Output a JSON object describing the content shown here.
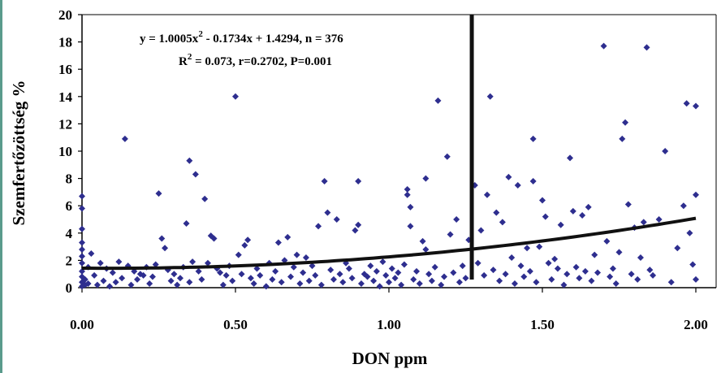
{
  "chart_data": {
    "type": "scatter",
    "xlabel": "DON ppm",
    "ylabel": "Szemfertőzöttség %",
    "xlim": [
      0,
      2.0
    ],
    "ylim": [
      0,
      20
    ],
    "x_ticks": [
      "0.00",
      "0.50",
      "1.00",
      "1.50",
      "2.00"
    ],
    "y_ticks": [
      "0",
      "2",
      "4",
      "6",
      "8",
      "10",
      "12",
      "14",
      "16",
      "18",
      "20"
    ],
    "grid": false,
    "marker_color": "#2e2e8f",
    "annotation": {
      "line1": "y = 1.0005x",
      "line1_sup": "2",
      "line1_rest": " - 0.1734x + 1.4294, n = 376",
      "line2": "R",
      "line2_sup": "2",
      "line2_rest": " = 0.073, r=0.2702, P=0.001"
    },
    "trendline": {
      "a": 1.0005,
      "b": -0.1734,
      "c": 1.4294
    },
    "vertical_line_x": 1.27,
    "points": [
      [
        0.0,
        6.7
      ],
      [
        0.0,
        5.8
      ],
      [
        0.0,
        4.3
      ],
      [
        0.0,
        3.3
      ],
      [
        0.0,
        2.8
      ],
      [
        0.0,
        2.3
      ],
      [
        0.0,
        1.8
      ],
      [
        0.0,
        1.2
      ],
      [
        0.0,
        0.8
      ],
      [
        0.0,
        0.4
      ],
      [
        0.0,
        0.1
      ],
      [
        0.01,
        0.6
      ],
      [
        0.01,
        0.2
      ],
      [
        0.02,
        1.5
      ],
      [
        0.02,
        0.3
      ],
      [
        0.03,
        2.5
      ],
      [
        0.04,
        0.9
      ],
      [
        0.05,
        0.2
      ],
      [
        0.06,
        1.8
      ],
      [
        0.07,
        0.5
      ],
      [
        0.08,
        1.4
      ],
      [
        0.09,
        0.1
      ],
      [
        0.1,
        1.1
      ],
      [
        0.11,
        0.4
      ],
      [
        0.12,
        1.9
      ],
      [
        0.13,
        0.7
      ],
      [
        0.14,
        10.9
      ],
      [
        0.15,
        1.6
      ],
      [
        0.16,
        0.2
      ],
      [
        0.17,
        1.2
      ],
      [
        0.18,
        0.6
      ],
      [
        0.19,
        1.0
      ],
      [
        0.2,
        0.9
      ],
      [
        0.21,
        1.5
      ],
      [
        0.22,
        0.3
      ],
      [
        0.23,
        0.8
      ],
      [
        0.24,
        1.7
      ],
      [
        0.25,
        6.9
      ],
      [
        0.26,
        3.6
      ],
      [
        0.27,
        2.9
      ],
      [
        0.28,
        1.3
      ],
      [
        0.29,
        0.5
      ],
      [
        0.3,
        1.0
      ],
      [
        0.31,
        0.2
      ],
      [
        0.32,
        0.7
      ],
      [
        0.33,
        1.5
      ],
      [
        0.34,
        4.7
      ],
      [
        0.35,
        9.3
      ],
      [
        0.35,
        0.4
      ],
      [
        0.36,
        1.9
      ],
      [
        0.37,
        8.3
      ],
      [
        0.38,
        1.2
      ],
      [
        0.39,
        0.6
      ],
      [
        0.4,
        6.5
      ],
      [
        0.41,
        1.8
      ],
      [
        0.42,
        3.8
      ],
      [
        0.43,
        3.6
      ],
      [
        0.44,
        1.4
      ],
      [
        0.45,
        1.1
      ],
      [
        0.46,
        0.2
      ],
      [
        0.47,
        0.9
      ],
      [
        0.48,
        1.6
      ],
      [
        0.49,
        0.5
      ],
      [
        0.5,
        14.0
      ],
      [
        0.51,
        2.4
      ],
      [
        0.52,
        1.0
      ],
      [
        0.53,
        3.1
      ],
      [
        0.54,
        3.5
      ],
      [
        0.55,
        0.7
      ],
      [
        0.56,
        0.3
      ],
      [
        0.57,
        1.4
      ],
      [
        0.58,
        0.9
      ],
      [
        0.6,
        0.1
      ],
      [
        0.61,
        1.8
      ],
      [
        0.62,
        0.6
      ],
      [
        0.63,
        1.2
      ],
      [
        0.64,
        3.3
      ],
      [
        0.65,
        0.4
      ],
      [
        0.66,
        2.0
      ],
      [
        0.67,
        3.7
      ],
      [
        0.68,
        0.8
      ],
      [
        0.69,
        1.5
      ],
      [
        0.7,
        2.4
      ],
      [
        0.71,
        0.3
      ],
      [
        0.72,
        1.1
      ],
      [
        0.73,
        2.2
      ],
      [
        0.74,
        0.5
      ],
      [
        0.75,
        1.6
      ],
      [
        0.76,
        0.9
      ],
      [
        0.77,
        4.5
      ],
      [
        0.78,
        0.2
      ],
      [
        0.79,
        7.8
      ],
      [
        0.8,
        5.5
      ],
      [
        0.81,
        1.3
      ],
      [
        0.82,
        0.6
      ],
      [
        0.83,
        5.0
      ],
      [
        0.84,
        1.0
      ],
      [
        0.85,
        0.4
      ],
      [
        0.86,
        1.8
      ],
      [
        0.87,
        1.4
      ],
      [
        0.88,
        0.7
      ],
      [
        0.89,
        4.2
      ],
      [
        0.9,
        7.8
      ],
      [
        0.9,
        4.6
      ],
      [
        0.91,
        0.3
      ],
      [
        0.92,
        1.0
      ],
      [
        0.93,
        0.8
      ],
      [
        0.94,
        1.6
      ],
      [
        0.95,
        0.5
      ],
      [
        0.96,
        1.2
      ],
      [
        0.97,
        0.1
      ],
      [
        0.98,
        1.9
      ],
      [
        0.99,
        0.9
      ],
      [
        1.0,
        0.4
      ],
      [
        1.01,
        1.4
      ],
      [
        1.02,
        0.7
      ],
      [
        1.03,
        1.1
      ],
      [
        1.04,
        0.2
      ],
      [
        1.05,
        1.7
      ],
      [
        1.06,
        7.2
      ],
      [
        1.06,
        6.8
      ],
      [
        1.07,
        5.9
      ],
      [
        1.07,
        4.5
      ],
      [
        1.08,
        0.6
      ],
      [
        1.09,
        1.2
      ],
      [
        1.1,
        0.3
      ],
      [
        1.11,
        3.4
      ],
      [
        1.12,
        8.0
      ],
      [
        1.12,
        2.8
      ],
      [
        1.13,
        1.0
      ],
      [
        1.14,
        0.5
      ],
      [
        1.15,
        1.5
      ],
      [
        1.16,
        13.7
      ],
      [
        1.17,
        0.2
      ],
      [
        1.18,
        0.8
      ],
      [
        1.19,
        9.6
      ],
      [
        1.2,
        3.9
      ],
      [
        1.21,
        1.1
      ],
      [
        1.22,
        5.0
      ],
      [
        1.23,
        0.4
      ],
      [
        1.24,
        1.6
      ],
      [
        1.25,
        0.7
      ],
      [
        1.26,
        3.5
      ],
      [
        1.28,
        7.5
      ],
      [
        1.29,
        1.8
      ],
      [
        1.3,
        4.2
      ],
      [
        1.31,
        0.9
      ],
      [
        1.32,
        6.8
      ],
      [
        1.33,
        14.0
      ],
      [
        1.34,
        1.3
      ],
      [
        1.35,
        5.5
      ],
      [
        1.36,
        0.5
      ],
      [
        1.37,
        4.8
      ],
      [
        1.38,
        1.0
      ],
      [
        1.39,
        8.1
      ],
      [
        1.4,
        2.2
      ],
      [
        1.41,
        0.3
      ],
      [
        1.42,
        7.5
      ],
      [
        1.43,
        1.6
      ],
      [
        1.44,
        0.8
      ],
      [
        1.45,
        2.9
      ],
      [
        1.46,
        1.2
      ],
      [
        1.47,
        10.9
      ],
      [
        1.47,
        7.8
      ],
      [
        1.48,
        0.4
      ],
      [
        1.49,
        3.0
      ],
      [
        1.5,
        6.4
      ],
      [
        1.51,
        5.2
      ],
      [
        1.52,
        1.8
      ],
      [
        1.53,
        0.6
      ],
      [
        1.54,
        2.1
      ],
      [
        1.55,
        1.4
      ],
      [
        1.56,
        4.6
      ],
      [
        1.57,
        0.2
      ],
      [
        1.58,
        1.0
      ],
      [
        1.59,
        9.5
      ],
      [
        1.6,
        5.6
      ],
      [
        1.61,
        1.5
      ],
      [
        1.62,
        0.7
      ],
      [
        1.63,
        5.3
      ],
      [
        1.64,
        1.2
      ],
      [
        1.65,
        5.9
      ],
      [
        1.66,
        0.5
      ],
      [
        1.67,
        2.4
      ],
      [
        1.68,
        1.1
      ],
      [
        1.7,
        17.7
      ],
      [
        1.71,
        3.4
      ],
      [
        1.72,
        0.8
      ],
      [
        1.73,
        1.4
      ],
      [
        1.74,
        0.3
      ],
      [
        1.75,
        2.6
      ],
      [
        1.76,
        10.9
      ],
      [
        1.77,
        12.1
      ],
      [
        1.78,
        6.1
      ],
      [
        1.79,
        1.0
      ],
      [
        1.8,
        4.4
      ],
      [
        1.81,
        0.6
      ],
      [
        1.82,
        2.2
      ],
      [
        1.83,
        4.8
      ],
      [
        1.84,
        17.6
      ],
      [
        1.85,
        1.3
      ],
      [
        1.86,
        0.9
      ],
      [
        1.88,
        5.0
      ],
      [
        1.9,
        10.0
      ],
      [
        1.92,
        0.4
      ],
      [
        1.94,
        2.9
      ],
      [
        1.96,
        6.0
      ],
      [
        1.97,
        13.5
      ],
      [
        1.98,
        4.0
      ],
      [
        1.99,
        1.7
      ],
      [
        2.0,
        13.3
      ],
      [
        2.0,
        6.8
      ],
      [
        2.0,
        0.6
      ]
    ]
  }
}
